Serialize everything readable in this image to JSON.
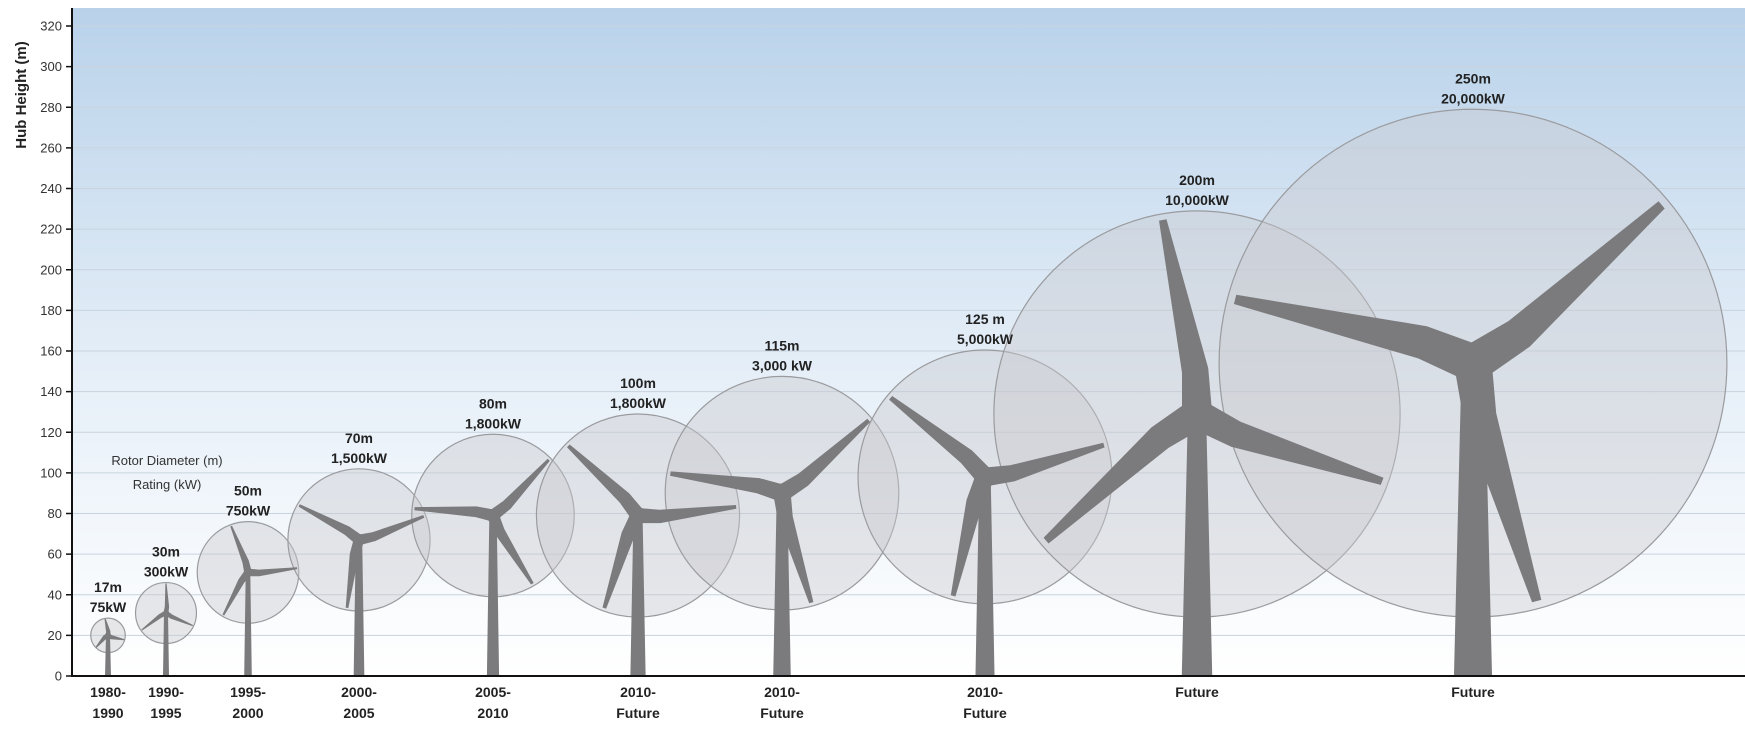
{
  "chart_data": {
    "type": "scatter",
    "title": "",
    "ylabel": "Hub Height (m)",
    "xlabel": "",
    "ylim": [
      0,
      320
    ],
    "y_ticks": [
      0,
      20,
      40,
      60,
      80,
      100,
      120,
      140,
      160,
      180,
      200,
      220,
      240,
      260,
      280,
      300,
      320
    ],
    "grid": true,
    "legend": {
      "line1": "Rotor Diameter (m)",
      "line2": "Rating (kW)"
    },
    "colors": {
      "turbine": "#7b7b7d",
      "rotor_disc": "#c8c9cc",
      "rotor_edge": "#9a9b9e",
      "sky_top": "#b9d2ea"
    },
    "turbines": [
      {
        "era": [
          "1980-",
          "1990"
        ],
        "hub_height": 20,
        "rotor_diameter": 17,
        "spec": [
          "17m",
          "75kW"
        ]
      },
      {
        "era": [
          "1990-",
          "1995"
        ],
        "hub_height": 31,
        "rotor_diameter": 30,
        "spec": [
          "30m",
          "300kW"
        ]
      },
      {
        "era": [
          "1995-",
          "2000"
        ],
        "hub_height": 51,
        "rotor_diameter": 50,
        "spec": [
          "50m",
          "750kW"
        ]
      },
      {
        "era": [
          "2000-",
          "2005"
        ],
        "hub_height": 67,
        "rotor_diameter": 70,
        "spec": [
          "70m",
          "1,500kW"
        ]
      },
      {
        "era": [
          "2005-",
          "2010"
        ],
        "hub_height": 79,
        "rotor_diameter": 80,
        "spec": [
          "80m",
          "1,800kW"
        ]
      },
      {
        "era": [
          "2010-",
          "Future"
        ],
        "hub_height": 79,
        "rotor_diameter": 100,
        "spec": [
          "100m",
          "1,800kW"
        ]
      },
      {
        "era": [
          "2010-",
          "Future"
        ],
        "hub_height": 90,
        "rotor_diameter": 115,
        "spec": [
          "115m",
          "3,000 kW"
        ]
      },
      {
        "era": [
          "2010-",
          "Future"
        ],
        "hub_height": 98,
        "rotor_diameter": 125,
        "spec": [
          "125 m",
          "5,000kW"
        ]
      },
      {
        "era": [
          "Future"
        ],
        "hub_height": 129,
        "rotor_diameter": 200,
        "spec": [
          "200m",
          "10,000kW"
        ]
      },
      {
        "era": [
          "Future"
        ],
        "hub_height": 154,
        "rotor_diameter": 250,
        "spec": [
          "250m",
          "20,000kW"
        ]
      }
    ]
  }
}
